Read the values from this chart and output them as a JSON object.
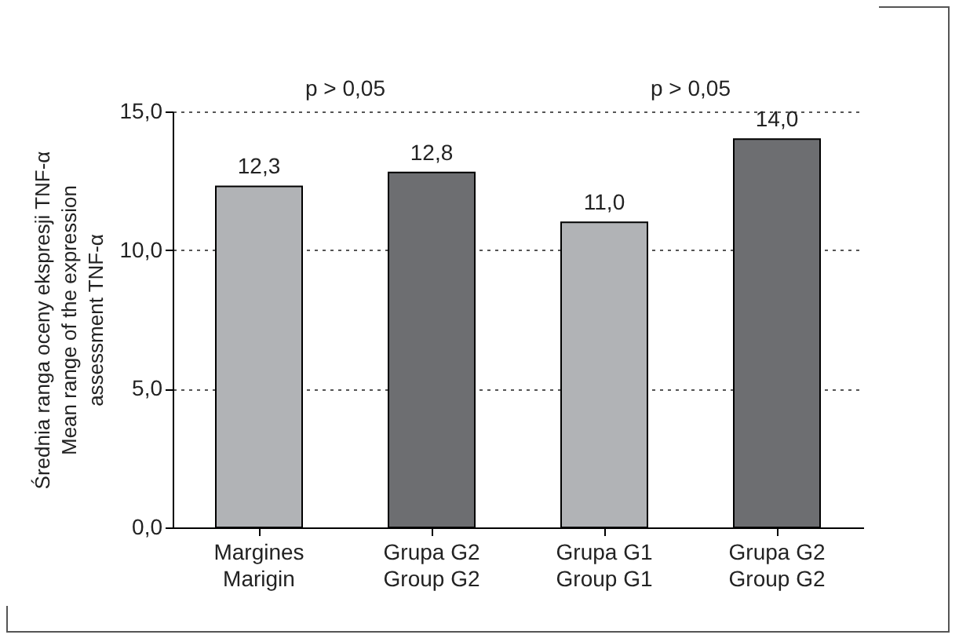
{
  "chart_data": {
    "type": "bar",
    "ylabel": "Średnia ranga oceny ekspresji TNF-α\nMean range of the expression\nassessment TNF-α",
    "categories": [
      "Margines\nMarigin",
      "Grupa G2\nGroup G2",
      "Grupa G1\nGroup G1",
      "Grupa G2\nGroup G2"
    ],
    "values": [
      12.3,
      12.8,
      11.0,
      14.0
    ],
    "colors": [
      "#b1b3b6",
      "#6d6e71",
      "#b1b3b6",
      "#6d6e71"
    ],
    "value_labels": [
      "12,3",
      "12,8",
      "11,0",
      "14,0"
    ],
    "ylim": [
      0,
      15
    ],
    "yticks": [
      {
        "value": 0,
        "label": "0,0"
      },
      {
        "value": 5,
        "label": "5,0"
      },
      {
        "value": 10,
        "label": "10,0"
      },
      {
        "value": 15,
        "label": "15,0"
      }
    ],
    "grid": "y",
    "annotations": [
      "p > 0,05",
      "p > 0,05"
    ]
  }
}
